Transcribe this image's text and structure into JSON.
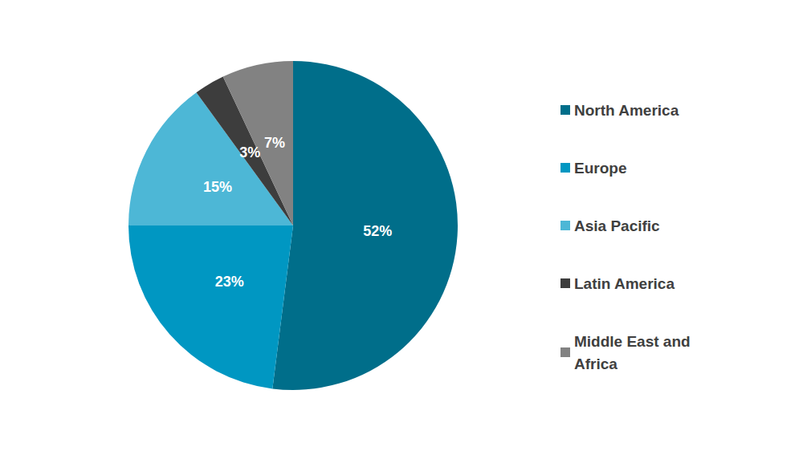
{
  "chart_data": {
    "type": "pie",
    "categories": [
      "North America",
      "Europe",
      "Asia Pacific",
      "Latin America",
      "Middle East and Africa"
    ],
    "values": [
      52,
      23,
      15,
      3,
      7
    ],
    "value_labels": [
      "52%",
      "23%",
      "15%",
      "3%",
      "7%"
    ],
    "colors": [
      "#006e8a",
      "#0097c2",
      "#4db7d6",
      "#3d3d3d",
      "#828282"
    ],
    "data_labels": true,
    "legend": "right"
  }
}
